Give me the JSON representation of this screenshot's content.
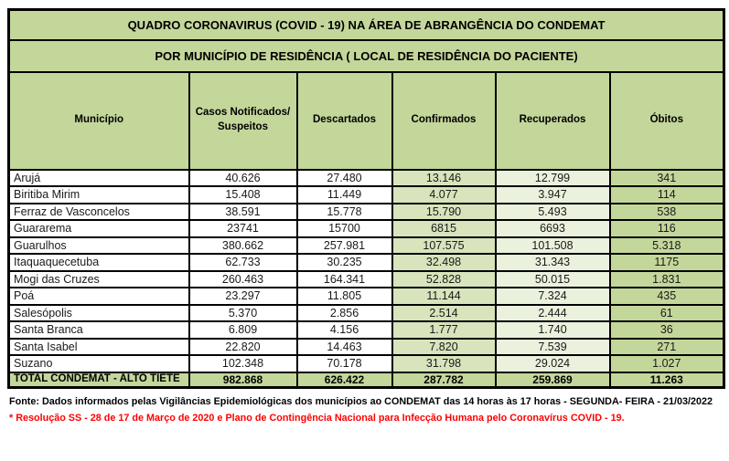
{
  "titles": {
    "line1": "QUADRO CORONAVIRUS (COVID - 19) NA ÁREA DE ABRANGÊNCIA DO CONDEMAT",
    "line2": "POR MUNICÍPIO DE RESIDÊNCIA ( LOCAL DE RESIDÊNCIA DO PACIENTE)"
  },
  "table": {
    "columns": [
      "Município",
      "Casos Notificados/ Suspeitos",
      "Descartados",
      "Confirmados",
      "Recuperados",
      "Óbitos"
    ],
    "rows": [
      {
        "municipio": "Arujá",
        "casos": "40.626",
        "descartados": "27.480",
        "confirmados": "13.146",
        "recuperados": "12.799",
        "obitos": "341"
      },
      {
        "municipio": "Biritiba Mirim",
        "casos": "15.408",
        "descartados": "11.449",
        "confirmados": "4.077",
        "recuperados": "3.947",
        "obitos": "114"
      },
      {
        "municipio": "Ferraz de Vasconcelos",
        "casos": "38.591",
        "descartados": "15.778",
        "confirmados": "15.790",
        "recuperados": "5.493",
        "obitos": "538"
      },
      {
        "municipio": "Guararema",
        "casos": "23741",
        "descartados": "15700",
        "confirmados": "6815",
        "recuperados": "6693",
        "obitos": "116"
      },
      {
        "municipio": "Guarulhos",
        "casos": "380.662",
        "descartados": "257.981",
        "confirmados": "107.575",
        "recuperados": "101.508",
        "obitos": "5.318"
      },
      {
        "municipio": "Itaquaquecetuba",
        "casos": "62.733",
        "descartados": "30.235",
        "confirmados": "32.498",
        "recuperados": "31.343",
        "obitos": "1175"
      },
      {
        "municipio": "Mogi das Cruzes",
        "casos": "260.463",
        "descartados": "164.341",
        "confirmados": "52.828",
        "recuperados": "50.015",
        "obitos": "1.831"
      },
      {
        "municipio": "Poá",
        "casos": "23.297",
        "descartados": "11.805",
        "confirmados": "11.144",
        "recuperados": "7.324",
        "obitos": "435"
      },
      {
        "municipio": "Salesópolis",
        "casos": "5.370",
        "descartados": "2.856",
        "confirmados": "2.514",
        "recuperados": "2.444",
        "obitos": "61"
      },
      {
        "municipio": "Santa Branca",
        "casos": "6.809",
        "descartados": "4.156",
        "confirmados": "1.777",
        "recuperados": "1.740",
        "obitos": "36"
      },
      {
        "municipio": "Santa Isabel",
        "casos": "22.820",
        "descartados": "14.463",
        "confirmados": "7.820",
        "recuperados": "7.539",
        "obitos": "271"
      },
      {
        "municipio": "Suzano",
        "casos": "102.348",
        "descartados": "70.178",
        "confirmados": "31.798",
        "recuperados": "29.024",
        "obitos": "1.027"
      }
    ],
    "total": {
      "label": "TOTAL CONDEMAT - ALTO TIETÊ",
      "casos": "982.868",
      "descartados": "626.422",
      "confirmados": "287.782",
      "recuperados": "259.869",
      "obitos": "11.263"
    }
  },
  "footer": {
    "fonte": "Fonte: Dados informados pelas Vigilâncias Epidemiológicas dos municípios ao CONDEMAT das 14 horas às 17 horas - SEGUNDA- FEIRA - 21/03/2022",
    "resolucao": "* Resolução SS - 28 de 17 de Março de 2020 e Plano de Contingência Nacional para Infecção Humana pelo Coronavírus COVID - 19."
  },
  "colors": {
    "header_green": "#C4D79B",
    "confirmados_bg": "#D7E4BC",
    "recuperados_bg": "#EAF1DD",
    "obitos_bg": "#C4D79B",
    "note_red": "#FF0000"
  }
}
